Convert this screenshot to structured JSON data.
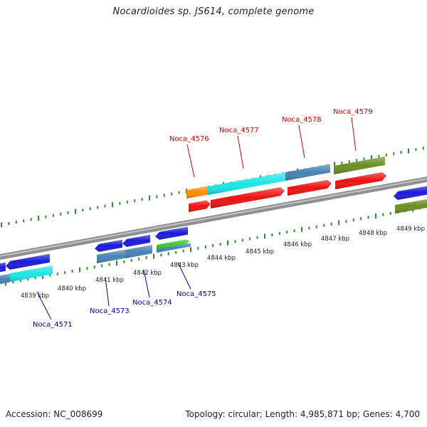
{
  "title": "Nocardioides sp. JS614, complete genome",
  "footer": {
    "accession": "Accession: NC_008699",
    "summary": "Topology: circular; Length: 4,985,871 bp; Genes: 4,700"
  },
  "colors": {
    "backbone": "#8a8a8a",
    "tick": "#2e8b2e",
    "label_top": "#cc0000",
    "label_bottom": "#0000aa",
    "gene_blue": "#1a1adb",
    "gene_cyan": "#1ae6e6",
    "gene_steel": "#4682b4",
    "gene_red": "#ee1111",
    "gene_orange": "#ff8c00",
    "gene_olive": "#6b8e23",
    "gene_green": "#33cc33"
  },
  "kbp_labels": [
    "4839 kbp",
    "4840 kbp",
    "4841 kbp",
    "4842 kbp",
    "4843 kbp",
    "4844 kbp",
    "4845 kbp",
    "4846 kbp",
    "4847 kbp",
    "4848 kbp",
    "4849 kbp"
  ],
  "gene_labels_top": [
    "Noca_4576",
    "Noca_4577",
    "Noca_4578",
    "Noca_4579"
  ],
  "gene_labels_bottom": [
    "Noca_4571",
    "Noca_4573",
    "Noca_4574",
    "Noca_4575"
  ]
}
